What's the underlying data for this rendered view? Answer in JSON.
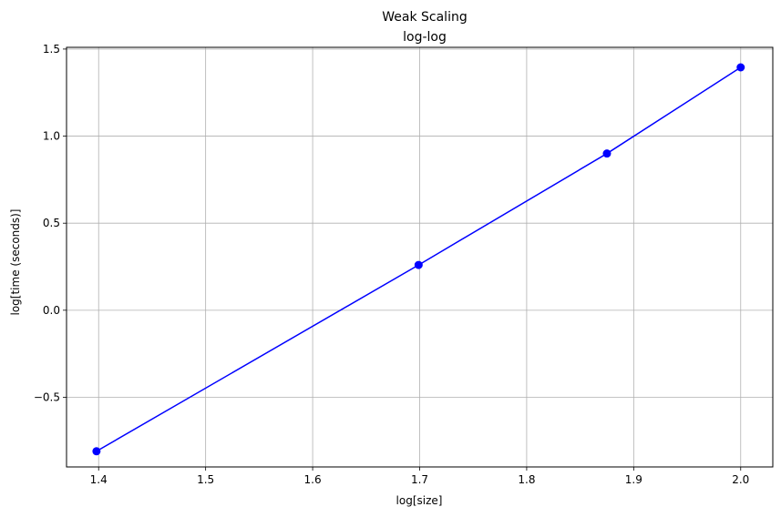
{
  "chart_data": {
    "type": "line",
    "title": "Weak Scaling",
    "subtitle": "log-log",
    "xlabel": "log[size]",
    "ylabel": "log[time (seconds)]",
    "xlim": [
      1.37,
      2.03
    ],
    "ylim": [
      -0.9,
      1.51
    ],
    "xticks": [
      1.4,
      1.5,
      1.6,
      1.7,
      1.8,
      1.9,
      2.0
    ],
    "xtick_labels": [
      "1.4",
      "1.5",
      "1.6",
      "1.7",
      "1.8",
      "1.9",
      "2.0"
    ],
    "yticks": [
      -0.5,
      0.0,
      0.5,
      1.0,
      1.5
    ],
    "ytick_labels": [
      "−0.5",
      "0.0",
      "0.5",
      "1.0",
      "1.5"
    ],
    "grid": true,
    "series": [
      {
        "color": "#0000ff",
        "marker": "circle",
        "x": [
          1.398,
          1.699,
          1.875,
          2.0
        ],
        "y": [
          -0.81,
          0.26,
          0.9,
          1.395
        ]
      }
    ]
  }
}
